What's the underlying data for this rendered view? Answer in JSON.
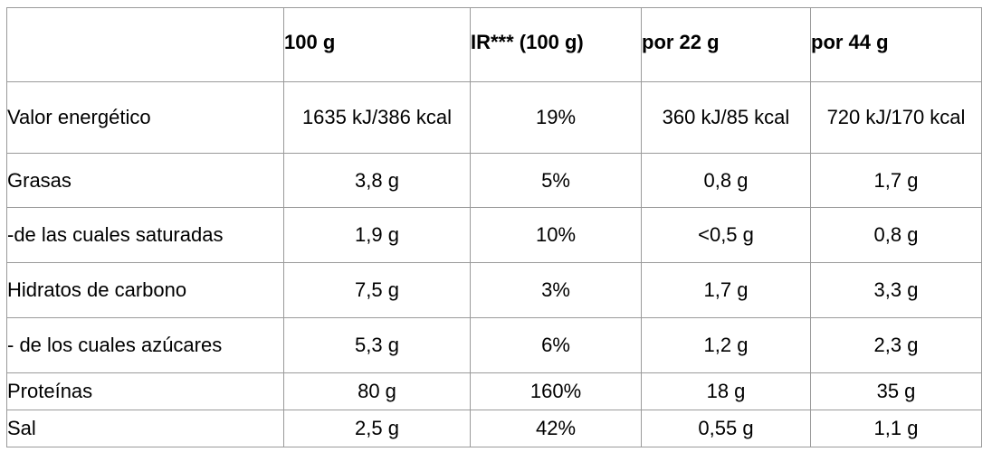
{
  "table": {
    "headers": [
      "",
      "100 g",
      "IR*** (100 g)",
      "por 22 g",
      "por 44 g"
    ],
    "rows": [
      {
        "label": "Valor energético",
        "values": [
          "1635 kJ/386 kcal",
          "19%",
          "360 kJ/85 kcal",
          "720 kJ/170 kcal"
        ]
      },
      {
        "label": "Grasas",
        "values": [
          "3,8 g",
          "5%",
          "0,8 g",
          "1,7 g"
        ]
      },
      {
        "label": "-de las cuales saturadas",
        "values": [
          "1,9 g",
          "10%",
          "<0,5 g",
          "0,8 g"
        ]
      },
      {
        "label": "Hidratos de carbono",
        "values": [
          "7,5 g",
          "3%",
          "1,7 g",
          "3,3 g"
        ]
      },
      {
        "label": "- de los cuales azúcares",
        "values": [
          "5,3 g",
          "6%",
          "1,2 g",
          "2,3 g"
        ]
      },
      {
        "label": "Proteínas",
        "values": [
          "80 g",
          "160%",
          "18 g",
          "35 g"
        ]
      },
      {
        "label": "Sal",
        "values": [
          "2,5 g",
          "42%",
          "0,55 g",
          "1,1 g"
        ]
      }
    ]
  }
}
